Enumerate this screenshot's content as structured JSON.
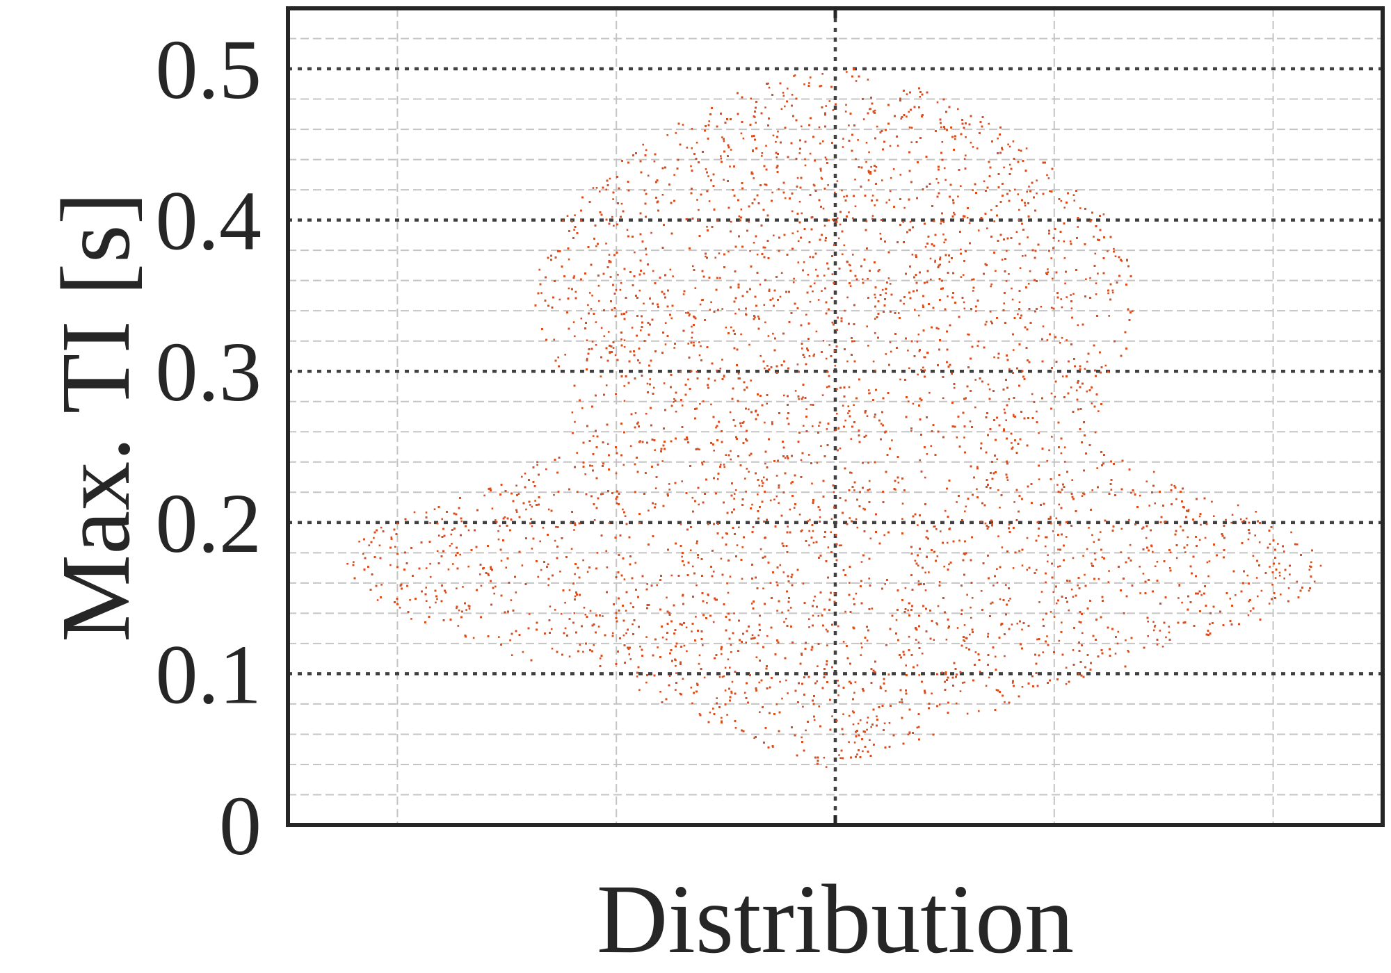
{
  "chart_data": {
    "type": "scatter",
    "subtype": "violin-swarm",
    "title": "",
    "xlabel": "Distribution",
    "ylabel": "Max. TI [s]",
    "ylim": [
      0,
      0.54
    ],
    "xlim": [
      -1.25,
      1.25
    ],
    "yticks": [
      0,
      0.1,
      0.2,
      0.3,
      0.4,
      0.5
    ],
    "ytick_labels": [
      "0",
      "0.1",
      "0.2",
      "0.3",
      "0.4",
      "0.5"
    ],
    "xticks_major": [
      0
    ],
    "xgrid_minor": [
      -1.0,
      -0.5,
      0.5,
      1.0
    ],
    "ygrid_minor_step": 0.02,
    "grid": true,
    "point_color": "#d94e1f",
    "frame_color": "#262626",
    "series": [
      {
        "values_range": [
          0.038,
          0.5
        ],
        "point_count": 28000,
        "density_profile": [
          {
            "y": 0.038,
            "half_width": 0.02
          },
          {
            "y": 0.05,
            "half_width": 0.15
          },
          {
            "y": 0.07,
            "half_width": 0.32
          },
          {
            "y": 0.09,
            "half_width": 0.5
          },
          {
            "y": 0.11,
            "half_width": 0.72
          },
          {
            "y": 0.13,
            "half_width": 0.93
          },
          {
            "y": 0.15,
            "half_width": 1.07
          },
          {
            "y": 0.17,
            "half_width": 1.12
          },
          {
            "y": 0.19,
            "half_width": 1.09
          },
          {
            "y": 0.21,
            "half_width": 0.94
          },
          {
            "y": 0.23,
            "half_width": 0.77
          },
          {
            "y": 0.25,
            "half_width": 0.6
          },
          {
            "y": 0.27,
            "half_width": 0.6
          },
          {
            "y": 0.29,
            "half_width": 0.62
          },
          {
            "y": 0.31,
            "half_width": 0.66
          },
          {
            "y": 0.33,
            "half_width": 0.68
          },
          {
            "y": 0.35,
            "half_width": 0.69
          },
          {
            "y": 0.37,
            "half_width": 0.68
          },
          {
            "y": 0.39,
            "half_width": 0.65
          },
          {
            "y": 0.41,
            "half_width": 0.6
          },
          {
            "y": 0.43,
            "half_width": 0.53
          },
          {
            "y": 0.45,
            "half_width": 0.44
          },
          {
            "y": 0.47,
            "half_width": 0.33
          },
          {
            "y": 0.49,
            "half_width": 0.18
          },
          {
            "y": 0.5,
            "half_width": 0.05
          }
        ]
      }
    ]
  }
}
